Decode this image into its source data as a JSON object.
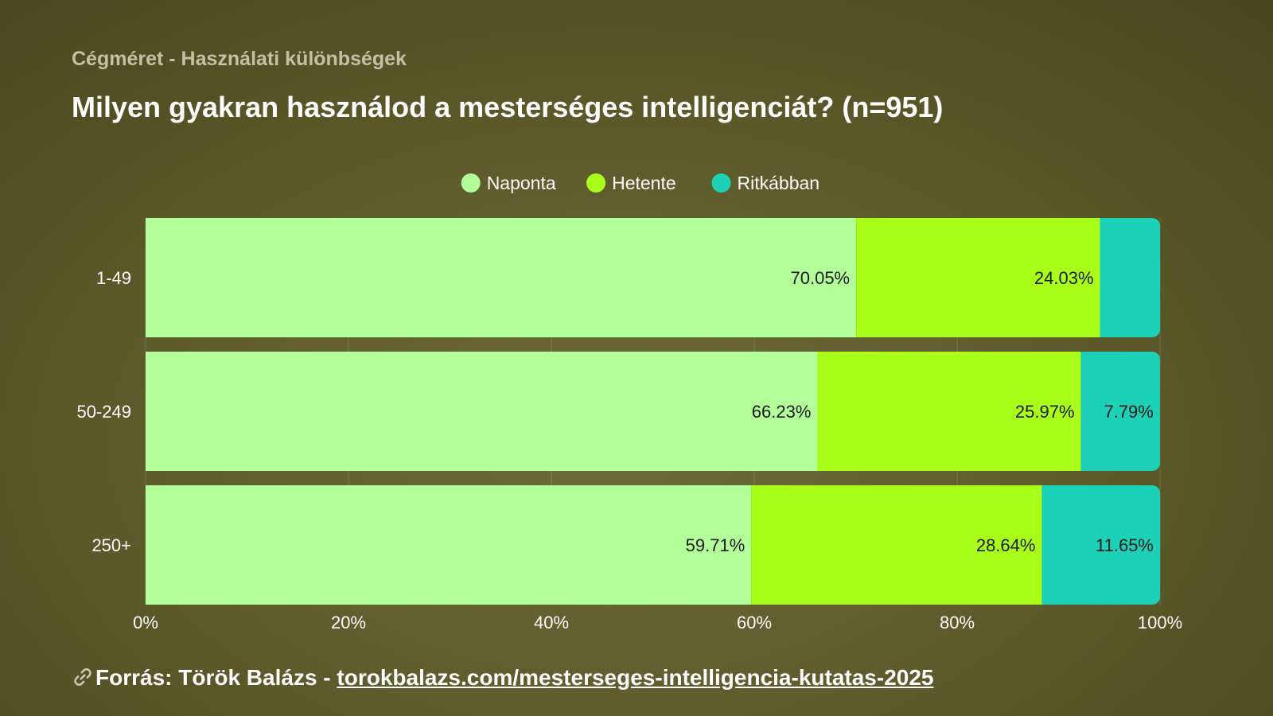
{
  "header": {
    "subtitle": "Cégméret - Használati különbségek",
    "title": "Milyen gyakran használod a mesterséges intelligenciát? (n=951)"
  },
  "footer": {
    "icon": "link-icon",
    "prefix": "Forrás: Török Balázs - ",
    "link_text": "torokbalazs.com/mesterseges-intelligencia-kutatas-2025"
  },
  "chart_data": {
    "type": "bar",
    "orientation": "horizontal",
    "stacked": true,
    "categories": [
      "1-49",
      "50-249",
      "250+"
    ],
    "series": [
      {
        "name": "Naponta",
        "color": "#b3ff99",
        "values": [
          70.05,
          66.23,
          59.71
        ],
        "labels": [
          "70.05%",
          "66.23%",
          "59.71%"
        ]
      },
      {
        "name": "Hetente",
        "color": "#aaff1a",
        "values": [
          24.03,
          25.97,
          28.64
        ],
        "labels": [
          "24.03%",
          "25.97%",
          "28.64%"
        ]
      },
      {
        "name": "Ritkábban",
        "color": "#1dd1b6",
        "values": [
          5.92,
          7.79,
          11.65
        ],
        "labels": [
          "",
          "7.79%",
          "11.65%"
        ]
      }
    ],
    "xlim": [
      0,
      100
    ],
    "xticks": [
      "0%",
      "20%",
      "40%",
      "60%",
      "80%",
      "100%"
    ],
    "legend_position": "top-center",
    "grid": true
  }
}
